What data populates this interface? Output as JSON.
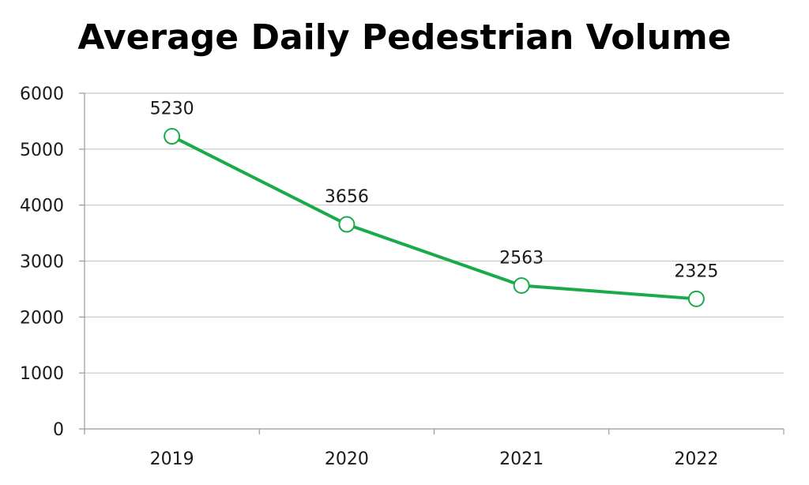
{
  "chart_data": {
    "type": "line",
    "title": "Average Daily Pedestrian Volume",
    "xlabel": "",
    "ylabel": "",
    "categories": [
      "2019",
      "2020",
      "2021",
      "2022"
    ],
    "series": [
      {
        "values": [
          5230,
          3656,
          2563,
          2325
        ],
        "data_labels": [
          "5230",
          "3656",
          "2563",
          "2325"
        ]
      }
    ],
    "ylim": [
      0,
      6000
    ],
    "yticks": [
      "0",
      "1000",
      "2000",
      "3000",
      "4000",
      "5000",
      "6000"
    ],
    "grid": true,
    "legend": "none",
    "line_color": "#1aaa4a",
    "marker": "hollow-circle"
  }
}
